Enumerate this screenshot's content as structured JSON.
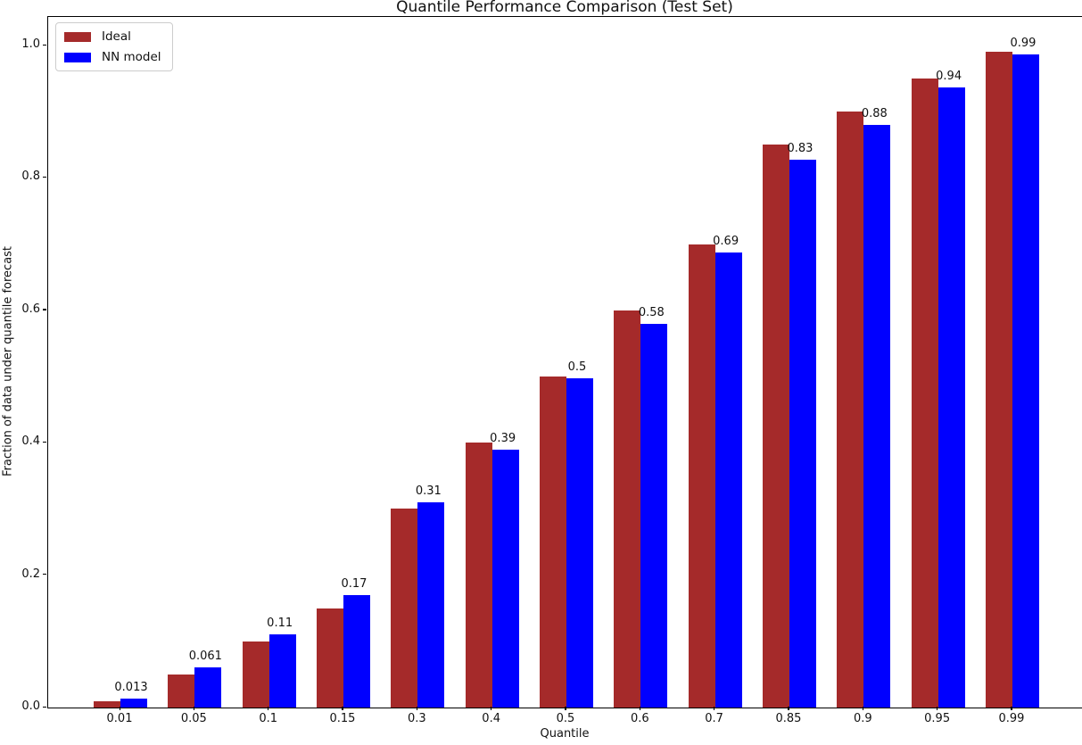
{
  "chart_data": {
    "type": "bar",
    "title": "Quantile Performance Comparison (Test Set)",
    "xlabel": "Quantile",
    "ylabel": "Fraction of data under quantile forecast",
    "categories": [
      "0.01",
      "0.05",
      "0.1",
      "0.15",
      "0.3",
      "0.4",
      "0.5",
      "0.6",
      "0.7",
      "0.85",
      "0.9",
      "0.95",
      "0.99"
    ],
    "series": [
      {
        "name": "Ideal",
        "color": "#A52A2A",
        "values": [
          0.01,
          0.05,
          0.1,
          0.15,
          0.3,
          0.4,
          0.5,
          0.6,
          0.7,
          0.85,
          0.9,
          0.95,
          0.99
        ]
      },
      {
        "name": "NN model",
        "color": "#0000FF",
        "values": [
          0.013,
          0.061,
          0.11,
          0.17,
          0.31,
          0.39,
          0.497,
          0.58,
          0.688,
          0.828,
          0.88,
          0.937,
          0.987
        ],
        "bar_labels": [
          "0.013",
          "0.061",
          "0.11",
          "0.17",
          "0.31",
          "0.39",
          "0.5",
          "0.58",
          "0.69",
          "0.83",
          "0.88",
          "0.94",
          "0.99"
        ]
      }
    ],
    "yticks": [
      "0.0",
      "0.2",
      "0.4",
      "0.6",
      "0.8",
      "1.0"
    ],
    "ylim": [
      0,
      1.043
    ],
    "grid": false,
    "legend_position": "upper left",
    "bar_value_labels_on": "NN model"
  }
}
